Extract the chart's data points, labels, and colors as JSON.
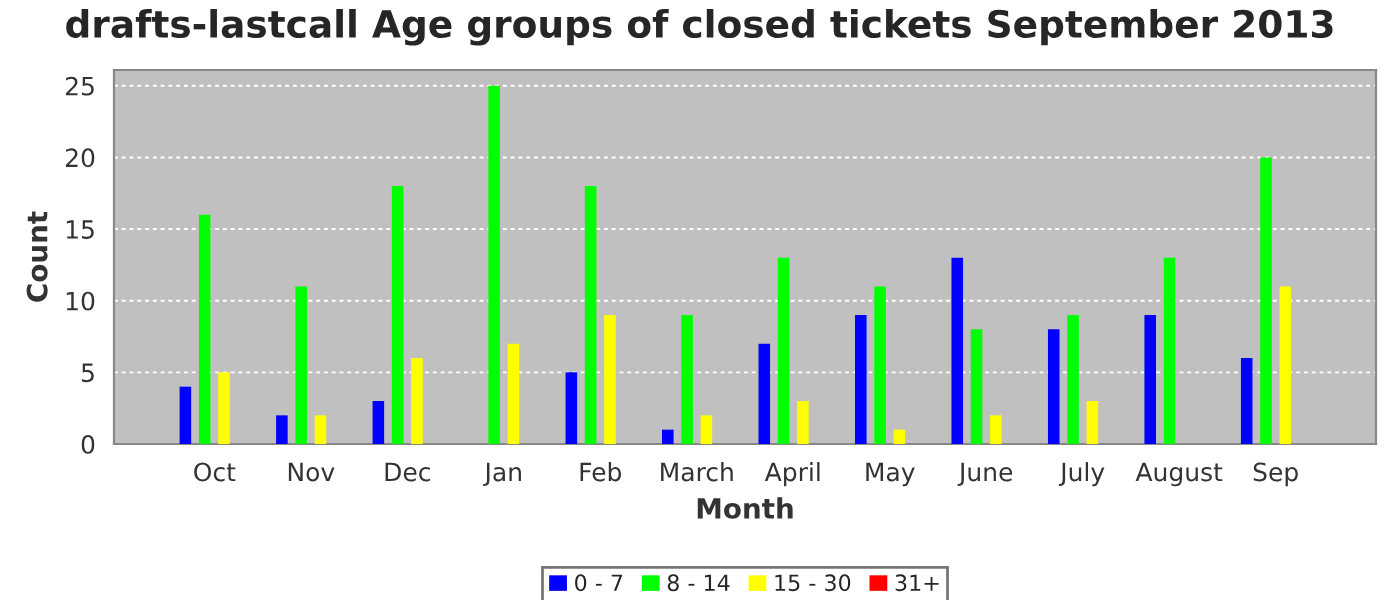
{
  "chart_data": {
    "type": "bar",
    "title": "drafts-lastcall Age groups of closed tickets September 2013",
    "xlabel": "Month",
    "ylabel": "Count",
    "categories": [
      "Oct",
      "Nov",
      "Dec",
      "Jan",
      "Feb",
      "March",
      "April",
      "May",
      "June",
      "July",
      "August",
      "Sep"
    ],
    "series": [
      {
        "name": "0 - 7",
        "color": "#0000ff",
        "values": [
          4,
          2,
          3,
          0,
          5,
          1,
          7,
          9,
          13,
          8,
          9,
          6
        ]
      },
      {
        "name": "8 - 14",
        "color": "#00ff00",
        "values": [
          16,
          11,
          18,
          25,
          18,
          9,
          13,
          11,
          8,
          9,
          13,
          20
        ]
      },
      {
        "name": "15 - 30",
        "color": "#ffff00",
        "values": [
          5,
          2,
          6,
          7,
          9,
          2,
          3,
          1,
          2,
          3,
          0,
          11
        ]
      },
      {
        "name": "31+",
        "color": "#ff0000",
        "values": [
          0,
          0,
          0,
          0,
          0,
          0,
          0,
          0,
          0,
          0,
          0,
          0
        ]
      }
    ],
    "ylim": [
      0,
      26.1
    ],
    "yticks": [
      0,
      5,
      10,
      15,
      20,
      25
    ],
    "grid": "y",
    "legend": "bottom"
  }
}
